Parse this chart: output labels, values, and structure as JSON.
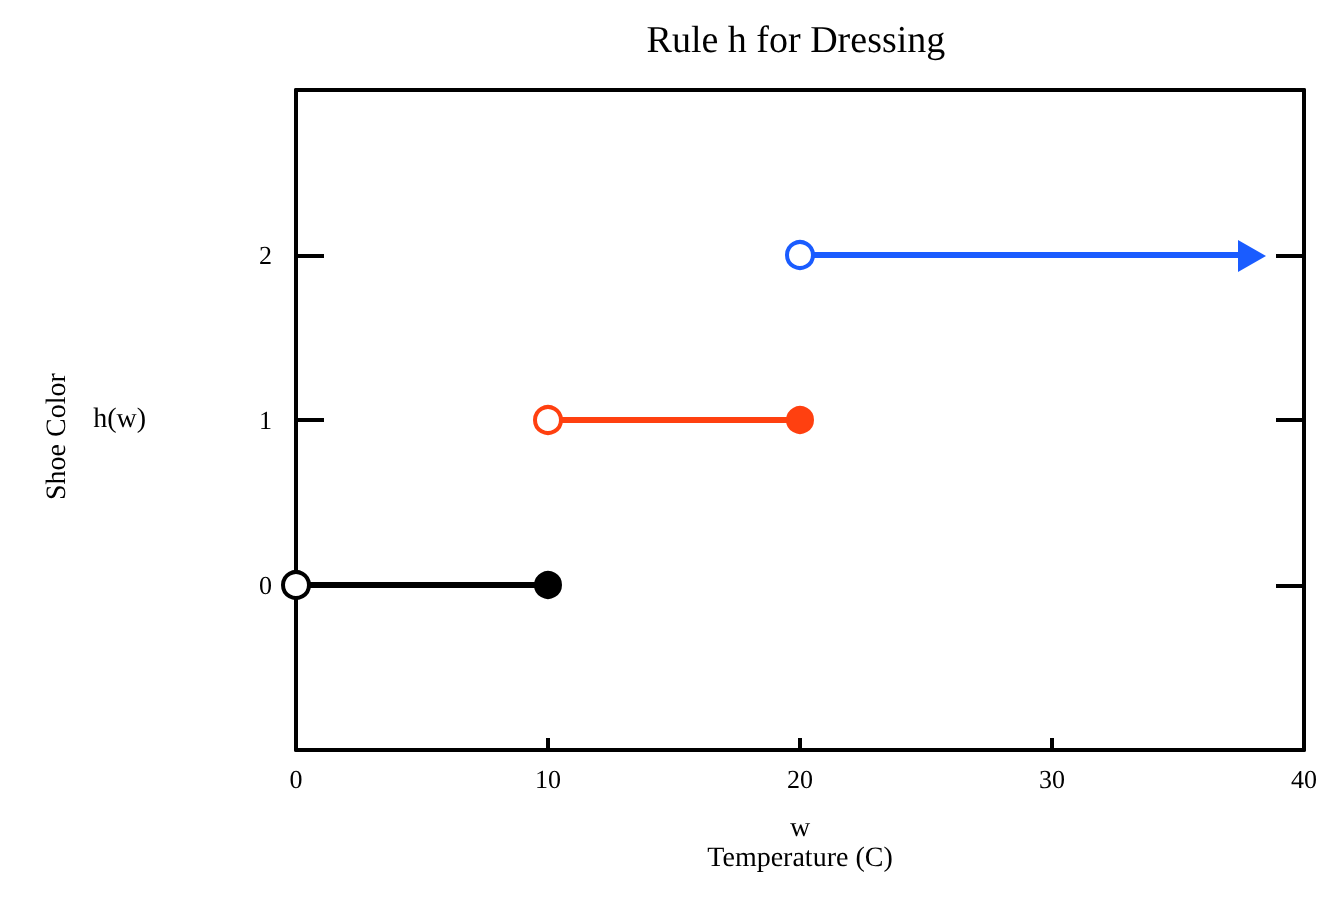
{
  "chart_data": {
    "type": "line",
    "title": "Rule h for Dressing",
    "xlabel": "w\nTemperature (C)",
    "ylabel": "h(w)",
    "annotations": [
      "Shoe Color"
    ],
    "series": [
      {
        "color": "#000000",
        "x": [
          0,
          10
        ],
        "values": [
          0,
          0
        ]
      },
      {
        "color": "#ff4010",
        "x": [
          10,
          20
        ],
        "values": [
          1,
          1
        ]
      },
      {
        "color": "#1a5cff",
        "x": [
          20,
          38
        ],
        "values": [
          2,
          2
        ]
      }
    ],
    "xlim": [
      0,
      40
    ],
    "xticks": [
      0,
      10,
      20,
      30,
      40
    ],
    "ylim": [
      -1,
      3
    ],
    "yticks": [
      0,
      1,
      2
    ],
    "grid": false,
    "marker": "circle",
    "line_style": "solid"
  }
}
